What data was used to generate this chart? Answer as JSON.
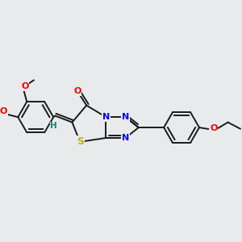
{
  "bg_color": "#e8eaec",
  "bond_color": "#1a1a1a",
  "S_color": "#b8b800",
  "N_color": "#0000ee",
  "O_color": "#ee0000",
  "H_color": "#008888",
  "line_width": 1.4,
  "font_size": 8.0,
  "figsize": [
    3.0,
    3.0
  ],
  "dpi": 100,
  "xlim": [
    0.5,
    9.5
  ],
  "ylim": [
    2.8,
    8.2
  ]
}
